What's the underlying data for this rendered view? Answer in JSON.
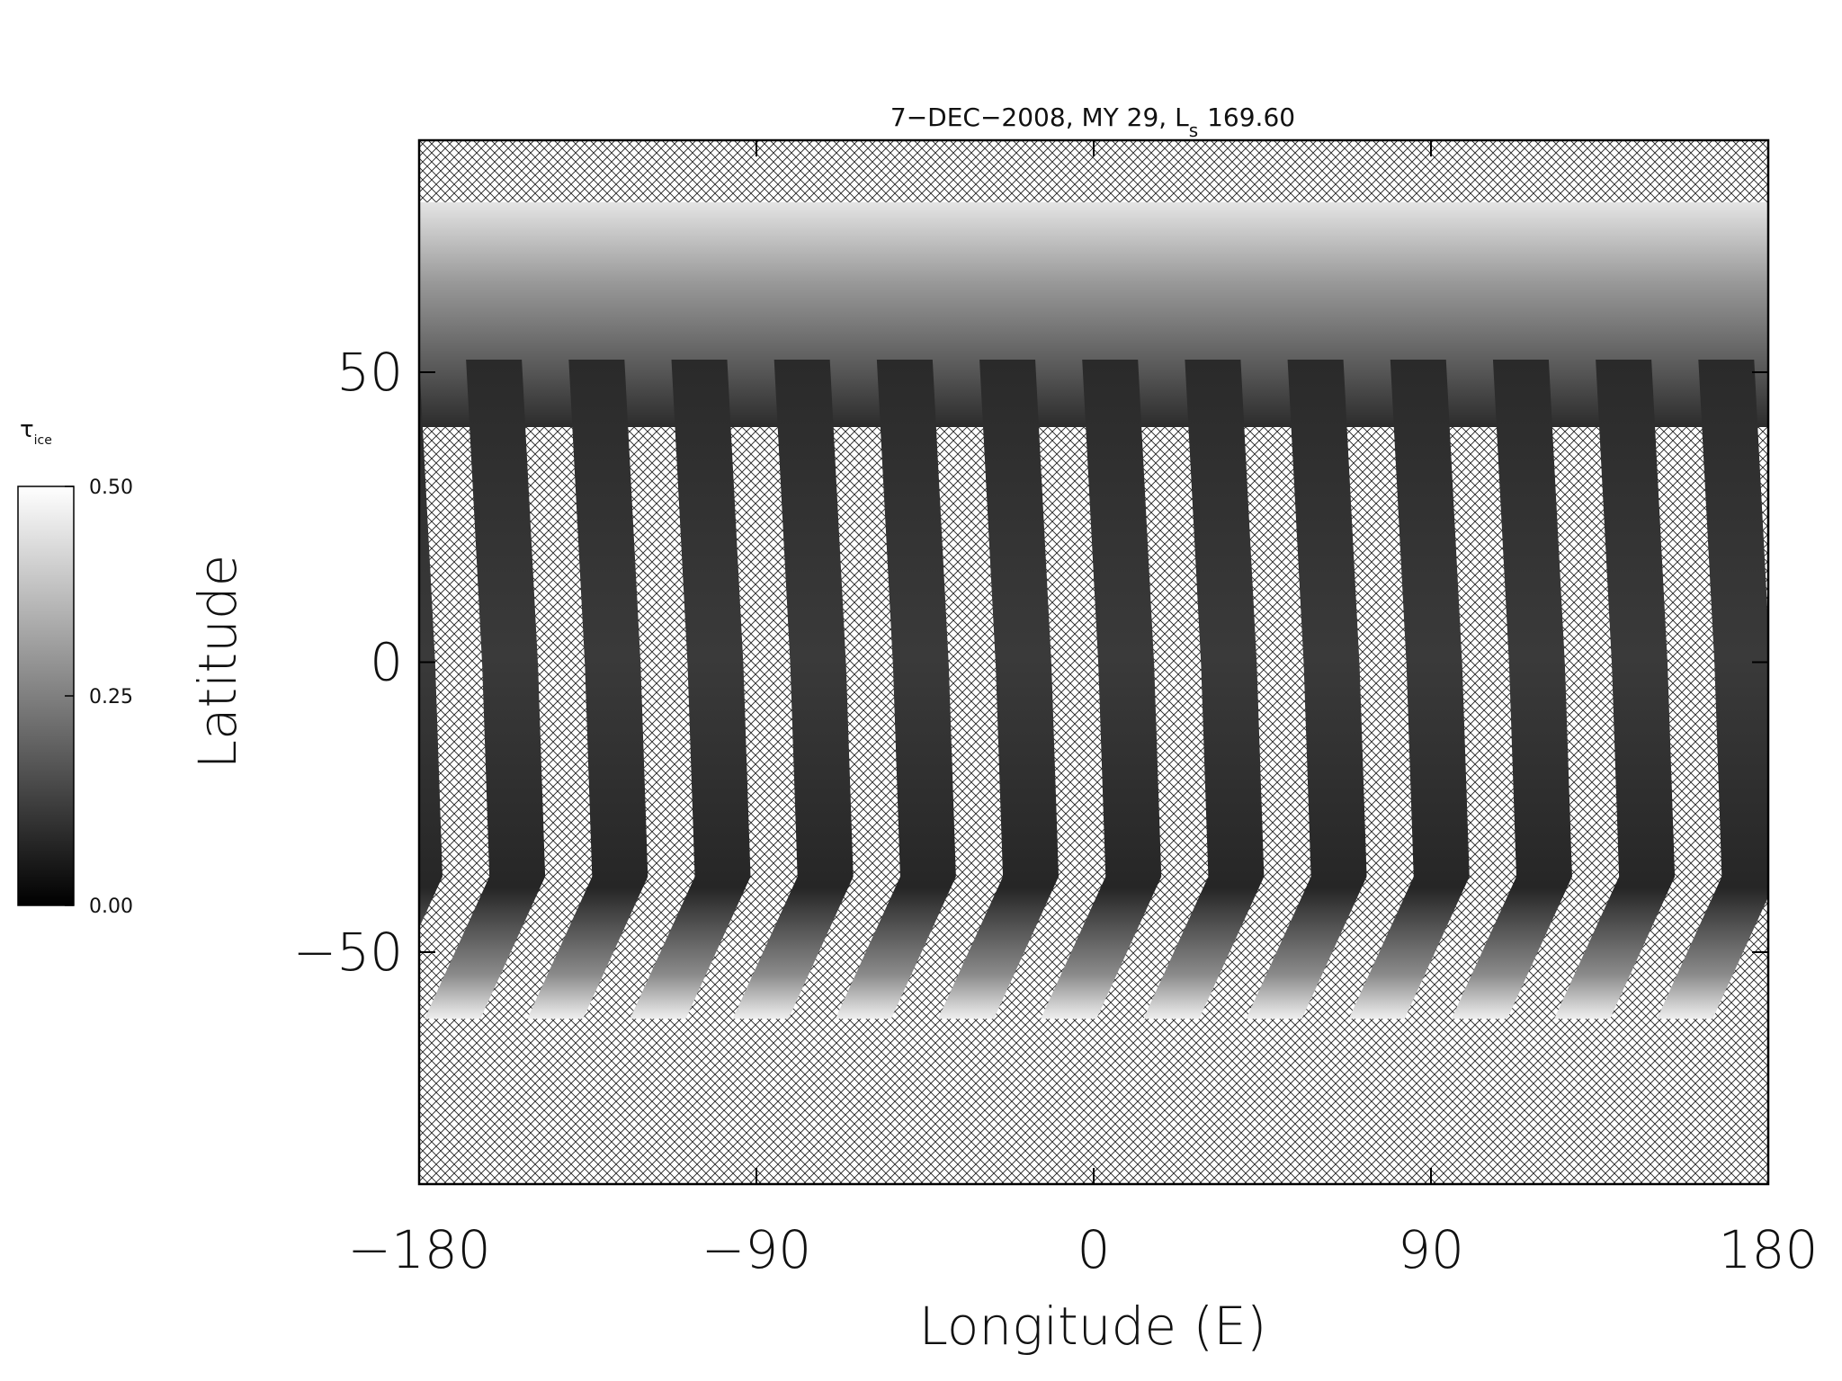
{
  "chart_data": {
    "type": "map",
    "title": "7−DEC−2008, MY 29,  L",
    "title_subscript": "s",
    "title_value": "169.60",
    "x_label": "Longitude (E)",
    "y_label": "Latitude",
    "xlim": [
      -180,
      180
    ],
    "ylim": [
      -90,
      90
    ],
    "xticks": [
      {
        "value": -180,
        "label": "−180"
      },
      {
        "value": -90,
        "label": "−90"
      },
      0,
      90,
      180
    ],
    "yticks": [
      {
        "value": -50,
        "label": "−50"
      },
      0,
      50
    ],
    "colorbar": {
      "label": "τ",
      "label_subscript": "ice",
      "lim": [
        0,
        0.5
      ],
      "ticks": [
        {
          "value": 0,
          "label": "0.00"
        },
        {
          "value": 0.25,
          "label": "0.25"
        },
        {
          "value": 0.5,
          "label": "0.50"
        }
      ]
    }
  }
}
